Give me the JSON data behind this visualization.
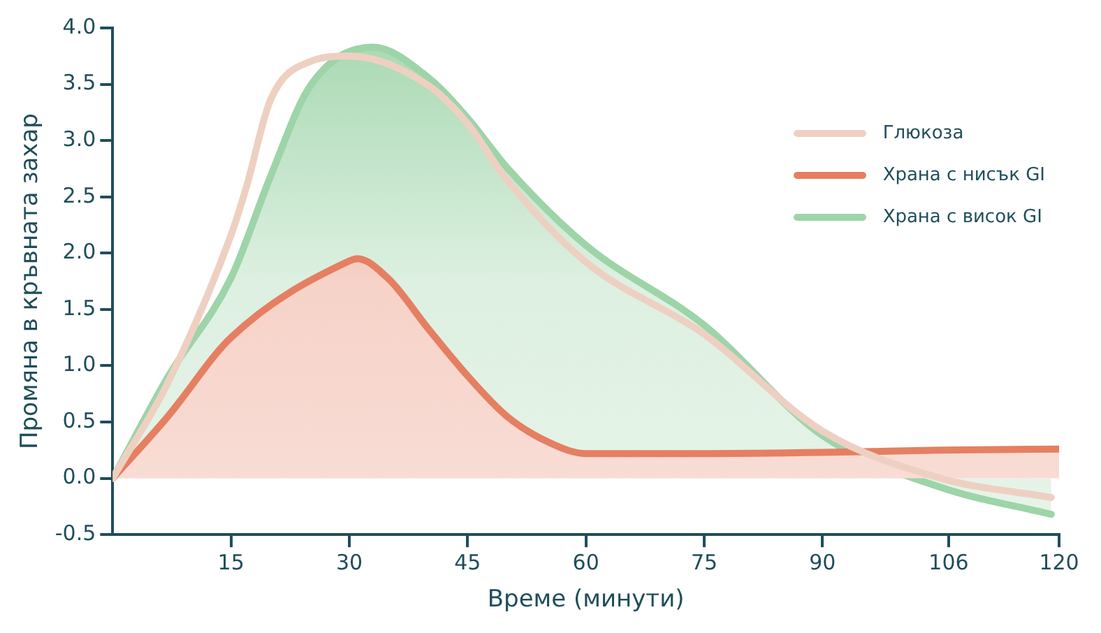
{
  "chart_data": {
    "type": "line",
    "xlabel": "Време (минути)",
    "ylabel": "Промяна в кръвната захар",
    "xlim": [
      0,
      120
    ],
    "xticks": [
      15,
      30,
      45,
      60,
      75,
      90,
      106,
      120
    ],
    "ylim": [
      -0.5,
      4.0
    ],
    "yticks": [
      -0.5,
      {
        "value": 0,
        "label": "0.0"
      },
      0.5,
      {
        "value": 1,
        "label": "1.0"
      },
      1.5,
      {
        "value": 2,
        "label": "2.0"
      },
      2.5,
      {
        "value": 3,
        "label": "3.0"
      },
      3.5,
      {
        "value": 4,
        "label": "4.0"
      }
    ],
    "grid": false,
    "legend": "top right",
    "marker": "none",
    "line_style": "solid",
    "series": [
      {
        "name": "Глюкоза",
        "type": "line",
        "color": "#eed0c2",
        "x": [
          0,
          7,
          15,
          17,
          20,
          25,
          30,
          40,
          45,
          50,
          60,
          75,
          90,
          105,
          119
        ],
        "values": [
          0,
          0.85,
          2.16,
          2.6,
          3.36,
          3.7,
          3.75,
          3.49,
          3.15,
          2.65,
          1.92,
          1.28,
          0.42,
          0,
          -0.17
        ]
      },
      {
        "name": "Храна с нисък GI",
        "type": "area",
        "color": "#e57f62",
        "x": [
          0,
          7,
          15,
          30,
          31,
          35,
          40,
          45,
          50,
          55,
          60,
          75,
          90,
          105,
          120
        ],
        "values": [
          0,
          0.55,
          1.25,
          1.93,
          1.95,
          1.77,
          1.33,
          0.91,
          0.55,
          0.33,
          0.22,
          0.22,
          0.23,
          0.25,
          0.26
        ]
      },
      {
        "name": "Храна с висок GI",
        "type": "area",
        "color": "#9dd4a8",
        "x": [
          0,
          7,
          15,
          20,
          25,
          33,
          40,
          45,
          50,
          60,
          75,
          90,
          105,
          119
        ],
        "values": [
          0,
          0.9,
          1.78,
          2.68,
          3.48,
          3.83,
          3.56,
          3.2,
          2.76,
          2.07,
          1.36,
          0.38,
          -0.08,
          -0.32
        ]
      }
    ]
  }
}
